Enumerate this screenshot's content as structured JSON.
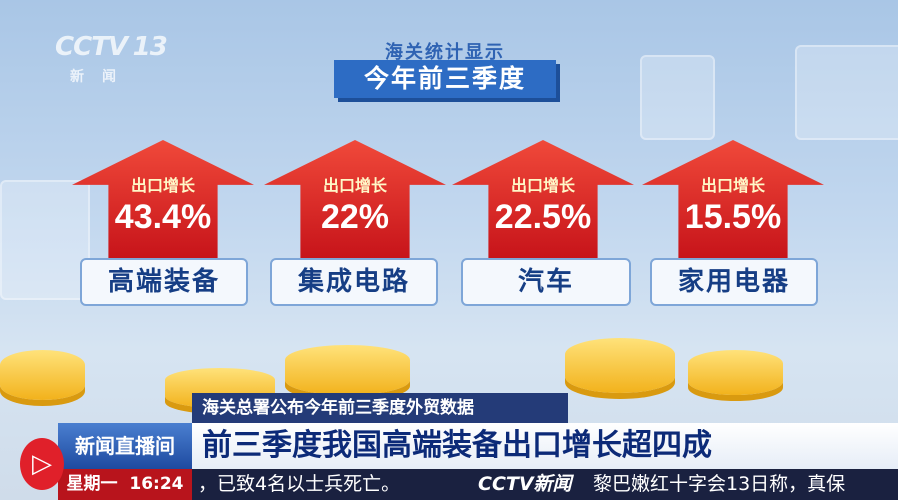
{
  "channel": {
    "logo": "CCTV",
    "number": "13",
    "name": "新闻"
  },
  "header": {
    "subtitle": "海关统计显示",
    "title": "今年前三季度"
  },
  "items": [
    {
      "caption": "出口增长",
      "value": "43.4%",
      "label": "高端装备"
    },
    {
      "caption": "出口增长",
      "value": "22%",
      "label": "集成电路"
    },
    {
      "caption": "出口增长",
      "value": "22.5%",
      "label": "汽车"
    },
    {
      "caption": "出口增长",
      "value": "15.5%",
      "label": "家用电器"
    }
  ],
  "lower_third": {
    "subheadline": "海关总署公布今年前三季度外贸数据",
    "headline": "前三季度我国高端装备出口增长超四成",
    "program": "新闻直播间"
  },
  "ticker": {
    "day": "星期一",
    "time": "16:24",
    "text_left": "，已致4名以士兵死亡。",
    "brand": "CCTV新闻",
    "text_right": "黎巴嫩红十字会13日称，真保"
  },
  "colors": {
    "arrow": "#d8231f",
    "banner": "#2d6cc4",
    "headline": "#0c2a78"
  }
}
